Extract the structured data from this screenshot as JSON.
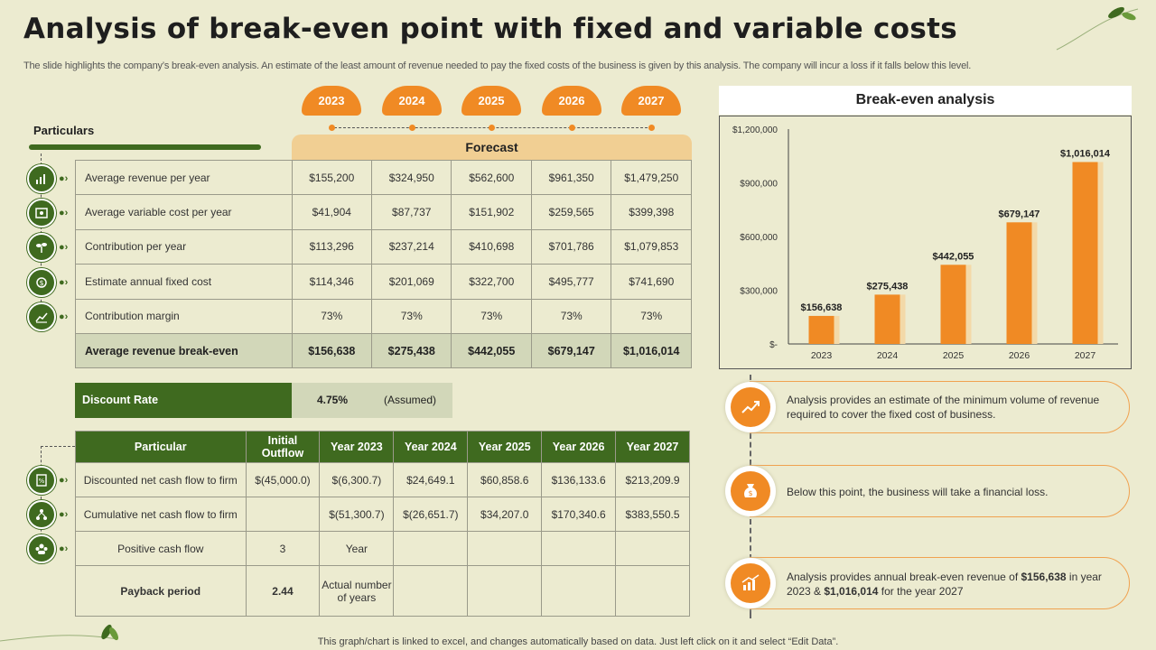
{
  "title": "Analysis of break-even point with fixed and variable costs",
  "subtitle": "The slide highlights the company’s break-even analysis. An estimate of the least amount of revenue needed to pay the fixed costs of the business is given by this analysis. The company will incur a loss if it falls below this level.",
  "years": [
    "2023",
    "2024",
    "2025",
    "2026",
    "2027"
  ],
  "particulars_label": "Particulars",
  "forecast_label": "Forecast",
  "table1": {
    "rows": [
      {
        "label": "Average revenue per year",
        "values": [
          "$155,200",
          "$324,950",
          "$562,600",
          "$961,350",
          "$1,479,250"
        ],
        "icon": "revenue-chart-icon"
      },
      {
        "label": "Average variable cost per year",
        "values": [
          "$41,904",
          "$87,737",
          "$151,902",
          "$259,565",
          "$399,398"
        ],
        "icon": "cost-document-icon"
      },
      {
        "label": "Contribution per year",
        "values": [
          "$113,296",
          "$237,214",
          "$410,698",
          "$701,786",
          "$1,079,853"
        ],
        "icon": "plant-growth-icon"
      },
      {
        "label": "Estimate annual fixed cost",
        "values": [
          "$114,346",
          "$201,069",
          "$322,700",
          "$495,777",
          "$741,690"
        ],
        "icon": "money-box-icon"
      },
      {
        "label": "Contribution margin",
        "values": [
          "73%",
          "73%",
          "73%",
          "73%",
          "73%"
        ],
        "icon": "growth-graph-icon"
      },
      {
        "label": "Average revenue break-even",
        "values": [
          "$156,638",
          "$275,438",
          "$442,055",
          "$679,147",
          "$1,016,014"
        ],
        "icon": ""
      }
    ]
  },
  "discount": {
    "label": "Discount Rate",
    "value": "4.75%",
    "note": "(Assumed)"
  },
  "table2": {
    "headers": [
      "Particular",
      "Initial Outflow",
      "Year 2023",
      "Year 2024",
      "Year 2025",
      "Year 2026",
      "Year 2027"
    ],
    "rows": [
      {
        "cells": [
          "Discounted net cash flow to firm",
          "$(45,000.0)",
          "$(6,300.7)",
          "$24,649.1",
          "$60,858.6",
          "$136,133.6",
          "$213,209.9"
        ]
      },
      {
        "cells": [
          "Cumulative net cash flow to firm",
          "",
          "$(51,300.7)",
          "$(26,651.7)",
          "$34,207.0",
          "$170,340.6",
          "$383,550.5"
        ]
      },
      {
        "cells": [
          "Positive cash flow",
          "3",
          "Year",
          "",
          "",
          "",
          ""
        ]
      },
      {
        "cells": [
          "Payback period",
          "2.44",
          "Actual number of years",
          "",
          "",
          "",
          ""
        ]
      }
    ]
  },
  "chart_title": "Break-even analysis",
  "chart_data": {
    "type": "bar",
    "title": "Break-even analysis",
    "categories": [
      "2023",
      "2024",
      "2025",
      "2026",
      "2027"
    ],
    "values": [
      156638,
      275438,
      442055,
      679147,
      1016014
    ],
    "data_labels": [
      "$156,638",
      "$275,438",
      "$442,055",
      "$679,147",
      "$1,016,014"
    ],
    "y_ticks": [
      "$-",
      "$300,000",
      "$600,000",
      "$900,000",
      "$1,200,000"
    ],
    "ylim": [
      0,
      1200000
    ],
    "bar_color": "#f08a24",
    "bar_shadow_color": "#f3d9a8",
    "grid": false
  },
  "notes": [
    {
      "text_html": "Analysis provides  an estimate of the minimum volume  of revenue  required  to cover  the fixed cost of business.",
      "icon": "growth-arrow-icon"
    },
    {
      "text_html": "Below this point, the business will take a financial loss.",
      "icon": "money-bag-icon"
    },
    {
      "text_pre": "Analysis provides  annual break-even  revenue  of ",
      "bold1": "$156,638",
      "text_mid": " in year 2023 & ",
      "bold2": "$1,016,014",
      "text_post": " for the year 2027",
      "icon": "bar-growth-icon"
    }
  ],
  "footer": "This graph/chart is linked to excel,  and changes automatically based on data. Just left click on it and select “Edit Data”.",
  "colors": {
    "green": "#3f6a1f",
    "orange": "#f08a24",
    "background": "#ecebd0",
    "light_green": "#d2d7b9",
    "forecast_tan": "#f1cf93"
  }
}
